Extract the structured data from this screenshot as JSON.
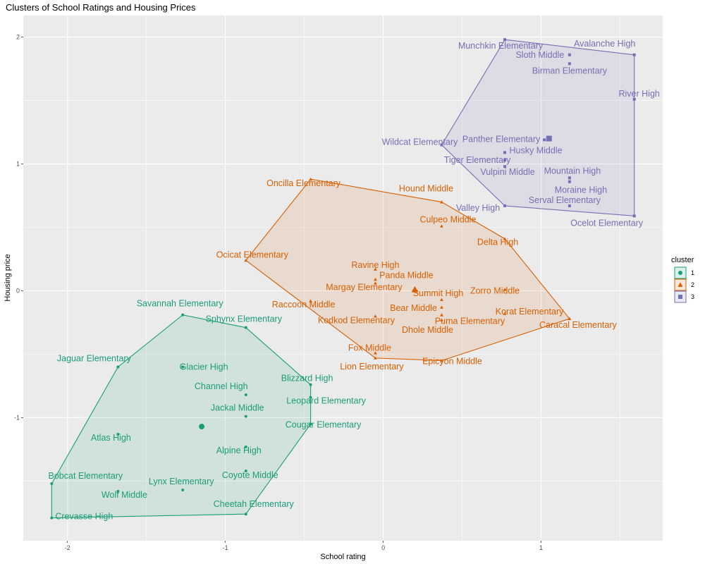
{
  "chart_data": {
    "type": "scatter",
    "title": "Clusters of School Ratings and Housing Prices",
    "xlabel": "School rating",
    "ylabel": "Housing price",
    "xlim": [
      -2.28,
      1.77
    ],
    "ylim": [
      -1.97,
      2.17
    ],
    "x_ticks": [
      -2,
      -1,
      0,
      1
    ],
    "x_tick_labels": [
      "-2",
      "-1",
      "0",
      "1"
    ],
    "y_ticks": [
      -1,
      0,
      1,
      2
    ],
    "y_tick_labels": [
      "-1",
      "0",
      "1",
      "2"
    ],
    "grid": true,
    "legend": {
      "title": "cluster",
      "placement": "right",
      "entries": [
        {
          "label": "1",
          "shape": "circle",
          "color": "#1b9e77"
        },
        {
          "label": "2",
          "shape": "triangle",
          "color": "#d95f02"
        },
        {
          "label": "3",
          "shape": "square",
          "color": "#7570b3"
        }
      ]
    },
    "series": [
      {
        "cluster": "1",
        "color": "#1b9e77",
        "shape": "circle",
        "centroid": [
          -1.15,
          -1.07
        ],
        "hull": [
          [
            -2.1,
            -1.52
          ],
          [
            -2.1,
            -1.79
          ],
          [
            -0.87,
            -1.76
          ],
          [
            -0.46,
            -1.05
          ],
          [
            -0.46,
            -0.74
          ],
          [
            -0.87,
            -0.29
          ],
          [
            -1.27,
            -0.19
          ],
          [
            -1.68,
            -0.6
          ]
        ],
        "points": [
          {
            "name": "Savannah Elementary",
            "x": -1.27,
            "y": -0.19
          },
          {
            "name": "Sphynx Elementary",
            "x": -0.87,
            "y": -0.29
          },
          {
            "name": "Jaguar Elementary",
            "x": -1.68,
            "y": -0.6
          },
          {
            "name": "Glacier High",
            "x": -1.27,
            "y": -0.6
          },
          {
            "name": "Channel High",
            "x": -0.87,
            "y": -0.82
          },
          {
            "name": "Blizzard High",
            "x": -0.46,
            "y": -0.74
          },
          {
            "name": "Leopard Elementary",
            "x": -0.46,
            "y": -0.84
          },
          {
            "name": "Jackal Middle",
            "x": -0.87,
            "y": -0.99
          },
          {
            "name": "Cougar Elementary",
            "x": -0.46,
            "y": -1.05
          },
          {
            "name": "Atlas High",
            "x": -1.68,
            "y": -1.13
          },
          {
            "name": "Alpine High",
            "x": -0.87,
            "y": -1.23
          },
          {
            "name": "Coyote Middle",
            "x": -0.87,
            "y": -1.42
          },
          {
            "name": "Bobcat Elementary",
            "x": -2.1,
            "y": -1.52
          },
          {
            "name": "Lynx Elementary",
            "x": -1.27,
            "y": -1.57
          },
          {
            "name": "Wolf Middle",
            "x": -1.68,
            "y": -1.58
          },
          {
            "name": "Cheetah Elementary",
            "x": -0.87,
            "y": -1.76
          },
          {
            "name": "Crevasse High",
            "x": -2.1,
            "y": -1.79
          }
        ]
      },
      {
        "cluster": "2",
        "color": "#d95f02",
        "shape": "triangle",
        "centroid": [
          0.2,
          0.01
        ],
        "hull": [
          [
            -0.46,
            0.88
          ],
          [
            0.37,
            0.7
          ],
          [
            0.77,
            0.41
          ],
          [
            1.18,
            -0.22
          ],
          [
            0.37,
            -0.55
          ],
          [
            -0.05,
            -0.53
          ],
          [
            -0.87,
            0.24
          ]
        ],
        "points": [
          {
            "name": "Oncilla Elementary",
            "x": -0.46,
            "y": 0.88
          },
          {
            "name": "Hound Middle",
            "x": 0.37,
            "y": 0.7
          },
          {
            "name": "Culpeo Middle",
            "x": 0.37,
            "y": 0.51
          },
          {
            "name": "Delta High",
            "x": 0.77,
            "y": 0.41
          },
          {
            "name": "Ocicat Elementary",
            "x": -0.87,
            "y": 0.24
          },
          {
            "name": "Ravine High",
            "x": -0.05,
            "y": 0.17
          },
          {
            "name": "Panda Middle",
            "x": -0.05,
            "y": 0.09
          },
          {
            "name": "Margay Elementary",
            "x": -0.05,
            "y": 0.06
          },
          {
            "name": "Summit High",
            "x": 0.37,
            "y": -0.07
          },
          {
            "name": "Zorro Middle",
            "x": 0.77,
            "y": 0.01
          },
          {
            "name": "Raccoon Middle",
            "x": -0.46,
            "y": -0.08
          },
          {
            "name": "Bear Middle",
            "x": 0.37,
            "y": -0.13
          },
          {
            "name": "Korat Elementary",
            "x": 0.77,
            "y": -0.18
          },
          {
            "name": "Kodkod Elementary",
            "x": -0.05,
            "y": -0.2
          },
          {
            "name": "Puma Elementary",
            "x": 0.37,
            "y": -0.19
          },
          {
            "name": "Caracal Elementary",
            "x": 1.18,
            "y": -0.22
          },
          {
            "name": "Dhole Middle",
            "x": 0.37,
            "y": -0.23
          },
          {
            "name": "Fox Middle",
            "x": -0.05,
            "y": -0.49
          },
          {
            "name": "Epicyon Middle",
            "x": 0.37,
            "y": -0.55
          },
          {
            "name": "Lion Elementary",
            "x": -0.05,
            "y": -0.53
          }
        ]
      },
      {
        "cluster": "3",
        "color": "#7570b3",
        "shape": "square",
        "centroid": [
          1.05,
          1.2
        ],
        "hull": [
          [
            0.77,
            1.98
          ],
          [
            1.59,
            1.86
          ],
          [
            1.59,
            0.59
          ],
          [
            0.77,
            0.67
          ],
          [
            0.37,
            1.15
          ]
        ],
        "points": [
          {
            "name": "Munchkin Elementary",
            "x": 0.77,
            "y": 1.98
          },
          {
            "name": "Avalanche High",
            "x": 1.59,
            "y": 1.86
          },
          {
            "name": "Sloth Middle",
            "x": 1.18,
            "y": 1.86
          },
          {
            "name": "Birman Elementary",
            "x": 1.18,
            "y": 1.79
          },
          {
            "name": "River High",
            "x": 1.59,
            "y": 1.51
          },
          {
            "name": "Wildcat Elementary",
            "x": 0.37,
            "y": 1.15
          },
          {
            "name": "Panther Elementary",
            "x": 1.02,
            "y": 1.19
          },
          {
            "name": "Husky Middle",
            "x": 0.77,
            "y": 1.09
          },
          {
            "name": "Tiger Elementary",
            "x": 0.77,
            "y": 1.03
          },
          {
            "name": "Vulpini Middle",
            "x": 0.77,
            "y": 0.98
          },
          {
            "name": "Mountain High",
            "x": 1.18,
            "y": 0.89
          },
          {
            "name": "Moraine High",
            "x": 1.18,
            "y": 0.86
          },
          {
            "name": "Serval Elementary",
            "x": 1.18,
            "y": 0.67
          },
          {
            "name": "Valley High",
            "x": 0.77,
            "y": 0.67
          },
          {
            "name": "Ocelot Elementary",
            "x": 1.59,
            "y": 0.59
          }
        ]
      }
    ]
  }
}
